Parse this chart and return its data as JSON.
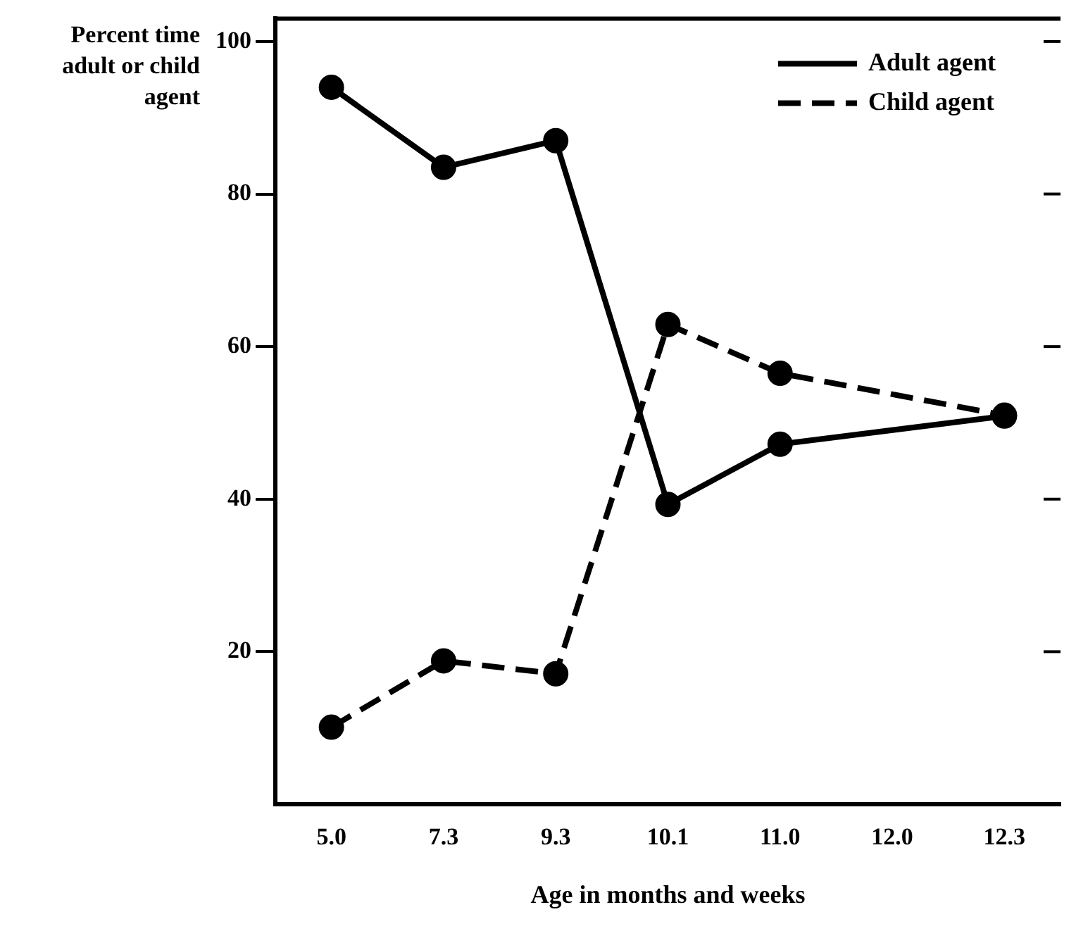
{
  "chart_data": {
    "type": "line",
    "xlabel": "Age in months and weeks",
    "ylabel": "Percent time adult or child agent",
    "categories": [
      "5.0",
      "7.3",
      "9.3",
      "10.1",
      "11.0",
      "12.0",
      "12.3"
    ],
    "series": [
      {
        "name": "Adult agent",
        "color": "#000000",
        "line_style": "solid",
        "values": [
          94,
          83.5,
          87,
          39.3,
          47.2,
          null,
          50.9
        ]
      },
      {
        "name": "Child agent",
        "color": "#000000",
        "line_style": "dashed",
        "values": [
          10.1,
          18.8,
          17.1,
          62.9,
          56.5,
          null,
          51
        ]
      }
    ],
    "ylim": [
      0,
      103
    ],
    "yticks": [
      20,
      40,
      60,
      80,
      100
    ],
    "grid": false,
    "legend": "top right",
    "marker": "circle"
  }
}
